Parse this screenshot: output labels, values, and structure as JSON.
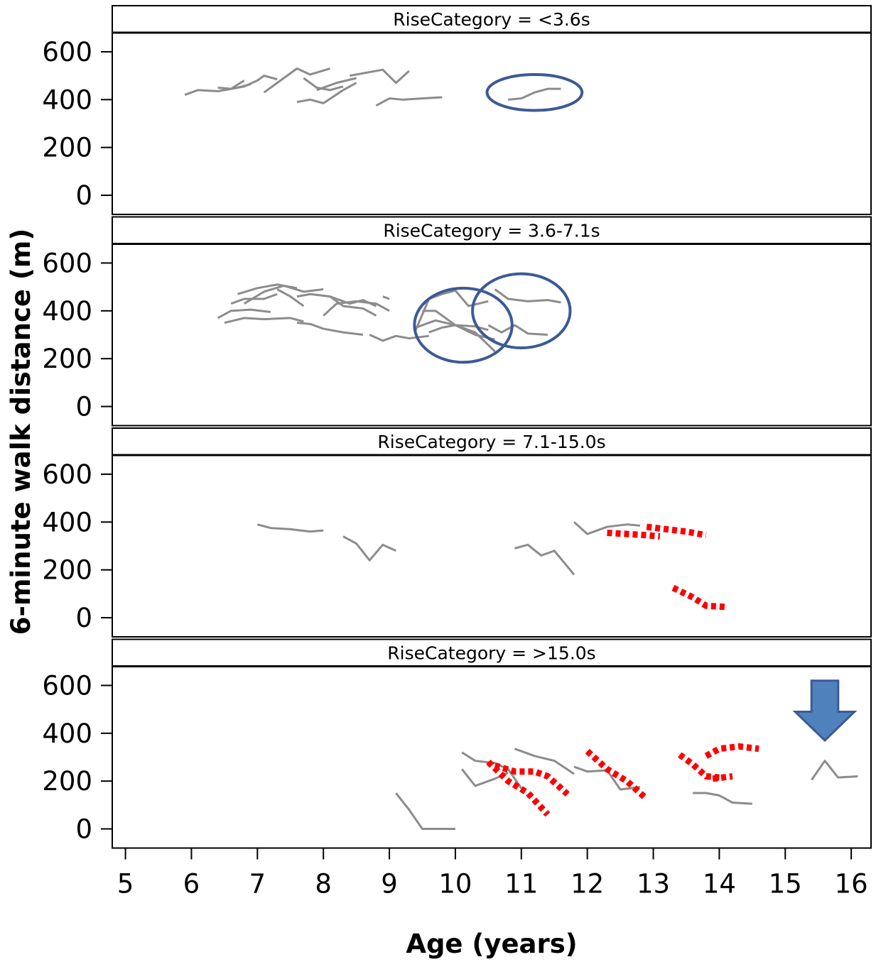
{
  "chart_data": {
    "type": "line",
    "xlabel": "Age (years)",
    "ylabel": "6-minute walk distance (m)",
    "x_ticks": [
      5,
      6,
      7,
      8,
      9,
      10,
      11,
      12,
      13,
      14,
      15,
      16
    ],
    "y_ticks": [
      0,
      200,
      400,
      600
    ],
    "xlim": [
      4.8,
      16.3
    ],
    "ylim": [
      -80,
      680
    ],
    "colors": {
      "solid": "#8c8c8c",
      "dotted": "#ff0000",
      "annotation": "#3b5a96",
      "arrow": "#4f81bd"
    },
    "panels": [
      {
        "title": "RiseCategory = <3.6s",
        "solid": [
          [
            [
              5.9,
              420
            ],
            [
              6.1,
              440
            ],
            [
              6.4,
              435
            ],
            [
              6.7,
              450
            ],
            [
              6.9,
              465
            ]
          ],
          [
            [
              6.4,
              450
            ],
            [
              6.6,
              445
            ],
            [
              6.8,
              480
            ]
          ],
          [
            [
              6.5,
              440
            ],
            [
              6.8,
              455
            ],
            [
              7.0,
              480
            ],
            [
              7.1,
              500
            ],
            [
              7.3,
              485
            ]
          ],
          [
            [
              7.1,
              430
            ],
            [
              7.3,
              470
            ],
            [
              7.6,
              530
            ],
            [
              7.8,
              505
            ],
            [
              8.1,
              530
            ]
          ],
          [
            [
              7.6,
              390
            ],
            [
              7.8,
              400
            ],
            [
              8.0,
              385
            ],
            [
              8.3,
              440
            ],
            [
              8.5,
              470
            ]
          ],
          [
            [
              7.7,
              490
            ],
            [
              7.9,
              450
            ],
            [
              8.1,
              440
            ],
            [
              8.3,
              455
            ]
          ],
          [
            [
              7.9,
              440
            ],
            [
              8.2,
              470
            ],
            [
              8.5,
              490
            ]
          ],
          [
            [
              8.4,
              500
            ],
            [
              8.6,
              510
            ],
            [
              8.9,
              525
            ],
            [
              9.1,
              470
            ],
            [
              9.3,
              520
            ]
          ],
          [
            [
              8.8,
              375
            ],
            [
              9.0,
              405
            ],
            [
              9.2,
              400
            ],
            [
              9.5,
              405
            ],
            [
              9.8,
              410
            ]
          ],
          [
            [
              10.8,
              400
            ],
            [
              11.0,
              405
            ],
            [
              11.2,
              430
            ],
            [
              11.4,
              445
            ],
            [
              11.6,
              445
            ]
          ]
        ],
        "dotted": [],
        "ellipses": [
          {
            "cx": 11.2,
            "cy": 430,
            "rx": 0.72,
            "ry": 75
          }
        ],
        "arrow": null
      },
      {
        "title": "RiseCategory = 3.6-7.1s",
        "solid": [
          [
            [
              6.4,
              370
            ],
            [
              6.6,
              400
            ],
            [
              6.9,
              405
            ],
            [
              7.2,
              395
            ]
          ],
          [
            [
              6.5,
              350
            ],
            [
              6.8,
              370
            ],
            [
              7.1,
              365
            ],
            [
              7.5,
              370
            ],
            [
              7.7,
              355
            ]
          ],
          [
            [
              6.6,
              430
            ],
            [
              6.8,
              450
            ],
            [
              7.1,
              450
            ],
            [
              7.3,
              470
            ]
          ],
          [
            [
              6.7,
              470
            ],
            [
              7.0,
              495
            ],
            [
              7.3,
              510
            ],
            [
              7.6,
              495
            ]
          ],
          [
            [
              6.8,
              430
            ],
            [
              7.1,
              480
            ],
            [
              7.4,
              505
            ],
            [
              7.7,
              480
            ],
            [
              8.0,
              490
            ]
          ],
          [
            [
              7.3,
              490
            ],
            [
              7.5,
              460
            ],
            [
              7.7,
              420
            ]
          ],
          [
            [
              7.6,
              350
            ],
            [
              7.8,
              345
            ],
            [
              8.0,
              325
            ],
            [
              8.3,
              310
            ],
            [
              8.6,
              300
            ]
          ],
          [
            [
              7.6,
              460
            ],
            [
              7.8,
              470
            ],
            [
              8.1,
              460
            ],
            [
              8.4,
              430
            ],
            [
              8.6,
              445
            ],
            [
              8.8,
              420
            ]
          ],
          [
            [
              8.0,
              380
            ],
            [
              8.2,
              430
            ],
            [
              8.5,
              440
            ],
            [
              8.8,
              430
            ],
            [
              9.0,
              400
            ]
          ],
          [
            [
              8.1,
              460
            ],
            [
              8.3,
              420
            ],
            [
              8.6,
              410
            ],
            [
              8.8,
              380
            ]
          ],
          [
            [
              8.7,
              300
            ],
            [
              8.9,
              275
            ],
            [
              9.1,
              295
            ],
            [
              9.3,
              285
            ],
            [
              9.6,
              295
            ]
          ],
          [
            [
              8.9,
              460
            ],
            [
              9.0,
              450
            ]
          ],
          [
            [
              9.4,
              330
            ],
            [
              9.7,
              360
            ],
            [
              10.0,
              340
            ],
            [
              10.3,
              335
            ],
            [
              10.5,
              320
            ]
          ],
          [
            [
              9.4,
              320
            ],
            [
              9.6,
              450
            ],
            [
              9.8,
              470
            ],
            [
              10.0,
              485
            ],
            [
              10.2,
              420
            ],
            [
              10.5,
              440
            ]
          ],
          [
            [
              9.5,
              400
            ],
            [
              9.7,
              400
            ],
            [
              10.0,
              340
            ],
            [
              10.3,
              310
            ],
            [
              10.6,
              230
            ]
          ],
          [
            [
              9.6,
              310
            ],
            [
              9.8,
              330
            ],
            [
              10.0,
              340
            ],
            [
              10.3,
              300
            ],
            [
              10.6,
              280
            ]
          ],
          [
            [
              10.6,
              490
            ],
            [
              10.8,
              450
            ],
            [
              11.1,
              440
            ],
            [
              11.4,
              445
            ],
            [
              11.6,
              435
            ]
          ],
          [
            [
              10.5,
              340
            ],
            [
              10.7,
              310
            ],
            [
              10.9,
              340
            ],
            [
              11.1,
              305
            ],
            [
              11.4,
              300
            ]
          ]
        ],
        "dotted": [],
        "ellipses": [
          {
            "cx": 10.12,
            "cy": 340,
            "rx": 0.74,
            "ry": 155
          },
          {
            "cx": 11.0,
            "cy": 400,
            "rx": 0.74,
            "ry": 155
          }
        ],
        "arrow": null
      },
      {
        "title": "RiseCategory = 7.1-15.0s",
        "solid": [
          [
            [
              7.0,
              390
            ],
            [
              7.2,
              375
            ],
            [
              7.5,
              370
            ],
            [
              7.8,
              360
            ],
            [
              8.0,
              365
            ]
          ],
          [
            [
              8.3,
              340
            ],
            [
              8.5,
              310
            ],
            [
              8.7,
              240
            ],
            [
              8.9,
              305
            ],
            [
              9.1,
              280
            ]
          ],
          [
            [
              10.9,
              290
            ],
            [
              11.1,
              305
            ],
            [
              11.3,
              260
            ],
            [
              11.5,
              280
            ],
            [
              11.8,
              180
            ]
          ],
          [
            [
              11.8,
              400
            ],
            [
              12.0,
              350
            ],
            [
              12.3,
              380
            ],
            [
              12.6,
              390
            ],
            [
              12.8,
              385
            ]
          ]
        ],
        "dotted": [
          [
            [
              12.3,
              355
            ],
            [
              12.6,
              350
            ],
            [
              12.9,
              345
            ],
            [
              13.1,
              340
            ]
          ],
          [
            [
              12.9,
              380
            ],
            [
              13.2,
              370
            ],
            [
              13.5,
              360
            ],
            [
              13.8,
              345
            ]
          ],
          [
            [
              13.3,
              125
            ],
            [
              13.6,
              85
            ],
            [
              13.8,
              50
            ],
            [
              14.1,
              45
            ]
          ]
        ],
        "ellipses": [],
        "arrow": null
      },
      {
        "title": "RiseCategory = >15.0s",
        "solid": [
          [
            [
              9.1,
              150
            ],
            [
              9.3,
              80
            ],
            [
              9.5,
              0
            ],
            [
              10.0,
              0
            ]
          ],
          [
            [
              10.1,
              320
            ],
            [
              10.3,
              285
            ],
            [
              10.6,
              275
            ],
            [
              10.8,
              250
            ],
            [
              11.0,
              170
            ]
          ],
          [
            [
              10.1,
              250
            ],
            [
              10.3,
              180
            ],
            [
              10.6,
              210
            ],
            [
              10.8,
              235
            ]
          ],
          [
            [
              10.9,
              335
            ],
            [
              11.2,
              305
            ],
            [
              11.5,
              285
            ],
            [
              11.8,
              230
            ]
          ],
          [
            [
              11.8,
              260
            ],
            [
              12.0,
              240
            ],
            [
              12.3,
              245
            ],
            [
              12.5,
              165
            ],
            [
              12.8,
              175
            ]
          ],
          [
            [
              13.6,
              150
            ],
            [
              13.8,
              150
            ],
            [
              14.0,
              140
            ],
            [
              14.2,
              110
            ],
            [
              14.5,
              105
            ]
          ],
          [
            [
              15.4,
              205
            ],
            [
              15.6,
              285
            ],
            [
              15.8,
              215
            ],
            [
              16.1,
              220
            ]
          ]
        ],
        "dotted": [
          [
            [
              10.6,
              265
            ],
            [
              10.9,
              240
            ],
            [
              11.2,
              240
            ],
            [
              11.4,
              220
            ],
            [
              11.7,
              145
            ]
          ],
          [
            [
              10.5,
              280
            ],
            [
              10.8,
              200
            ],
            [
              11.1,
              150
            ],
            [
              11.4,
              60
            ]
          ],
          [
            [
              12.0,
              325
            ],
            [
              12.3,
              250
            ],
            [
              12.6,
              200
            ],
            [
              12.9,
              125
            ]
          ],
          [
            [
              13.4,
              310
            ],
            [
              13.6,
              270
            ],
            [
              13.8,
              220
            ],
            [
              14.0,
              215
            ]
          ],
          [
            [
              13.8,
              305
            ],
            [
              14.0,
              335
            ],
            [
              14.3,
              345
            ],
            [
              14.6,
              335
            ]
          ],
          [
            [
              13.9,
              210
            ],
            [
              14.2,
              220
            ]
          ]
        ],
        "ellipses": [],
        "arrow": {
          "x": 15.6,
          "y_top": 620,
          "y_bottom": 370,
          "half_width": 0.45
        }
      }
    ]
  }
}
